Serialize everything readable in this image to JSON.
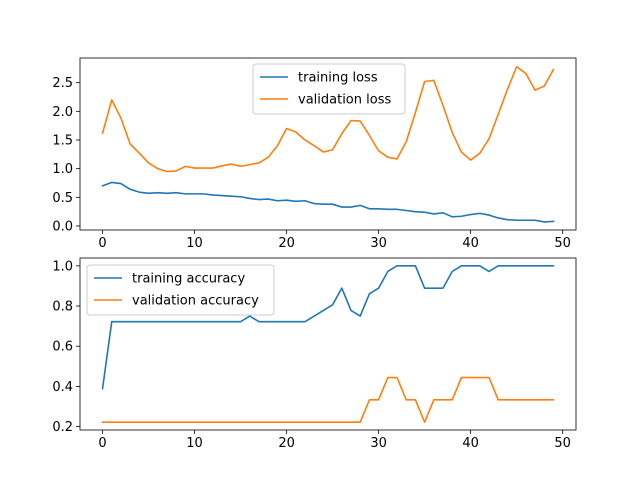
{
  "chart_data": [
    {
      "type": "line",
      "title": "",
      "xlabel": "",
      "ylabel": "",
      "xlim": [
        -2.45,
        51.45
      ],
      "ylim": [
        -0.07,
        2.93
      ],
      "x_ticks": [
        0,
        10,
        20,
        30,
        40,
        50
      ],
      "y_ticks": [
        0.0,
        0.5,
        1.0,
        1.5,
        2.0,
        2.5
      ],
      "y_tick_labels": [
        "0.0",
        "0.5",
        "1.0",
        "1.5",
        "2.0",
        "2.5"
      ],
      "grid": false,
      "legend_position": "top-center",
      "x": [
        0,
        1,
        2,
        3,
        4,
        5,
        6,
        7,
        8,
        9,
        10,
        11,
        12,
        13,
        14,
        15,
        16,
        17,
        18,
        19,
        20,
        21,
        22,
        23,
        24,
        25,
        26,
        27,
        28,
        29,
        30,
        31,
        32,
        33,
        34,
        35,
        36,
        37,
        38,
        39,
        40,
        41,
        42,
        43,
        44,
        45,
        46,
        47,
        48,
        49
      ],
      "series": [
        {
          "name": "training loss",
          "color": "#1f77b4",
          "values": [
            0.7,
            0.76,
            0.74,
            0.64,
            0.59,
            0.57,
            0.58,
            0.57,
            0.58,
            0.56,
            0.56,
            0.56,
            0.54,
            0.53,
            0.52,
            0.51,
            0.48,
            0.46,
            0.47,
            0.44,
            0.45,
            0.43,
            0.44,
            0.39,
            0.38,
            0.38,
            0.33,
            0.33,
            0.36,
            0.3,
            0.3,
            0.29,
            0.29,
            0.27,
            0.25,
            0.24,
            0.21,
            0.23,
            0.16,
            0.17,
            0.2,
            0.22,
            0.19,
            0.14,
            0.11,
            0.1,
            0.1,
            0.1,
            0.07,
            0.08
          ]
        },
        {
          "name": "validation loss",
          "color": "#ff7f0e",
          "values": [
            1.62,
            2.2,
            1.88,
            1.43,
            1.27,
            1.1,
            1.0,
            0.95,
            0.96,
            1.04,
            1.01,
            1.01,
            1.01,
            1.05,
            1.08,
            1.04,
            1.07,
            1.1,
            1.2,
            1.4,
            1.7,
            1.64,
            1.5,
            1.4,
            1.29,
            1.33,
            1.61,
            1.84,
            1.83,
            1.58,
            1.31,
            1.2,
            1.17,
            1.47,
            1.98,
            2.52,
            2.54,
            2.1,
            1.63,
            1.29,
            1.15,
            1.27,
            1.52,
            1.95,
            2.38,
            2.78,
            2.66,
            2.37,
            2.44,
            2.73
          ]
        }
      ]
    },
    {
      "type": "line",
      "title": "",
      "xlabel": "",
      "ylabel": "",
      "xlim": [
        -2.45,
        51.45
      ],
      "ylim": [
        0.183,
        1.039
      ],
      "x_ticks": [
        0,
        10,
        20,
        30,
        40,
        50
      ],
      "y_ticks": [
        0.2,
        0.4,
        0.6,
        0.8,
        1.0
      ],
      "y_tick_labels": [
        "0.2",
        "0.4",
        "0.6",
        "0.8",
        "1.0"
      ],
      "grid": false,
      "legend_position": "top-left",
      "x": [
        0,
        1,
        2,
        3,
        4,
        5,
        6,
        7,
        8,
        9,
        10,
        11,
        12,
        13,
        14,
        15,
        16,
        17,
        18,
        19,
        20,
        21,
        22,
        23,
        24,
        25,
        26,
        27,
        28,
        29,
        30,
        31,
        32,
        33,
        34,
        35,
        36,
        37,
        38,
        39,
        40,
        41,
        42,
        43,
        44,
        45,
        46,
        47,
        48,
        49
      ],
      "series": [
        {
          "name": "training accuracy",
          "color": "#1f77b4",
          "values": [
            0.389,
            0.722,
            0.722,
            0.722,
            0.722,
            0.722,
            0.722,
            0.722,
            0.722,
            0.722,
            0.722,
            0.722,
            0.722,
            0.722,
            0.722,
            0.722,
            0.75,
            0.722,
            0.722,
            0.722,
            0.722,
            0.722,
            0.722,
            0.75,
            0.778,
            0.806,
            0.889,
            0.778,
            0.75,
            0.861,
            0.889,
            0.972,
            1.0,
            1.0,
            1.0,
            0.889,
            0.889,
            0.889,
            0.972,
            1.0,
            1.0,
            1.0,
            0.972,
            1.0,
            1.0,
            1.0,
            1.0,
            1.0,
            1.0,
            1.0
          ]
        },
        {
          "name": "validation accuracy",
          "color": "#ff7f0e",
          "values": [
            0.222,
            0.222,
            0.222,
            0.222,
            0.222,
            0.222,
            0.222,
            0.222,
            0.222,
            0.222,
            0.222,
            0.222,
            0.222,
            0.222,
            0.222,
            0.222,
            0.222,
            0.222,
            0.222,
            0.222,
            0.222,
            0.222,
            0.222,
            0.222,
            0.222,
            0.222,
            0.222,
            0.222,
            0.222,
            0.333,
            0.333,
            0.444,
            0.444,
            0.333,
            0.333,
            0.222,
            0.333,
            0.333,
            0.333,
            0.444,
            0.444,
            0.444,
            0.444,
            0.333,
            0.333,
            0.333,
            0.333,
            0.333,
            0.333,
            0.333
          ]
        }
      ]
    }
  ]
}
